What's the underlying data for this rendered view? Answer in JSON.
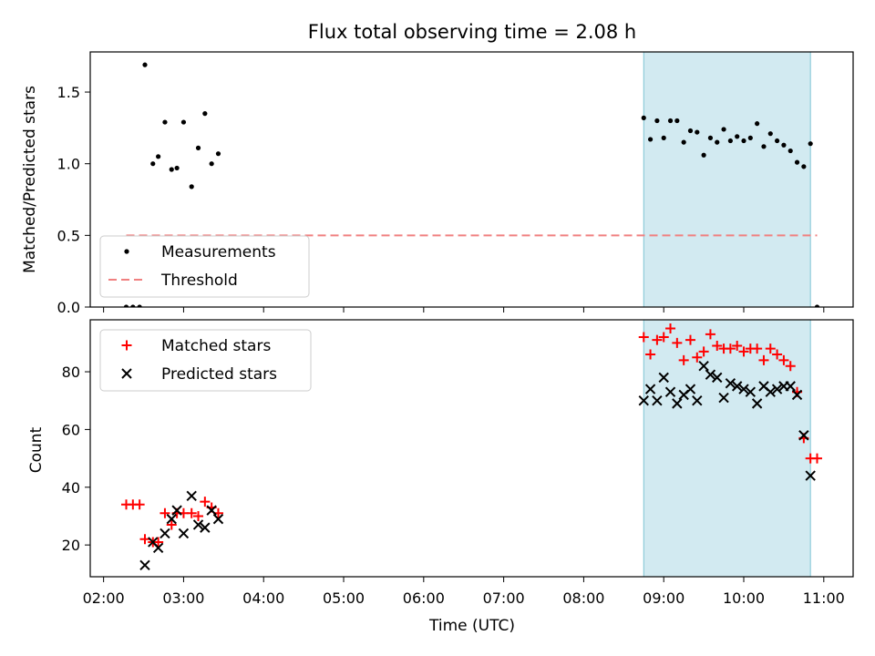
{
  "figure": {
    "title": "Flux total observing time = 2.08 h",
    "xlabel": "Time (UTC)",
    "xticks": [
      "02:00",
      "03:00",
      "04:00",
      "05:00",
      "06:00",
      "07:00",
      "08:00",
      "09:00",
      "10:00",
      "11:00"
    ],
    "shade": {
      "start": "08:45",
      "end": "10:50",
      "color": "#add8e6"
    }
  },
  "chart_data": [
    {
      "type": "scatter",
      "title": "Flux total observing time = 2.08 h",
      "xlabel": "",
      "ylabel": "Matched/Predicted stars",
      "xlim": [
        "01:50",
        "11:22"
      ],
      "ylim": [
        0,
        1.78
      ],
      "yticks": [
        0.0,
        0.5,
        1.0,
        1.5
      ],
      "ytick_labels": [
        "0.0",
        "0.5",
        "1.0",
        "1.5"
      ],
      "legend": {
        "placement": "lower-left",
        "entries": [
          "Measurements",
          "Threshold"
        ]
      },
      "series": [
        {
          "name": "Measurements",
          "marker": "dot",
          "color": "#000000",
          "points": [
            [
              "02:17",
              0.0
            ],
            [
              "02:22",
              0.0
            ],
            [
              "02:27",
              0.0
            ],
            [
              "02:31",
              1.69
            ],
            [
              "02:37",
              1.0
            ],
            [
              "02:41",
              1.05
            ],
            [
              "02:46",
              1.29
            ],
            [
              "02:51",
              0.96
            ],
            [
              "02:55",
              0.97
            ],
            [
              "03:00",
              1.29
            ],
            [
              "03:06",
              0.84
            ],
            [
              "03:11",
              1.11
            ],
            [
              "03:16",
              1.35
            ],
            [
              "03:21",
              1.0
            ],
            [
              "03:26",
              1.07
            ],
            [
              "08:45",
              1.32
            ],
            [
              "08:50",
              1.17
            ],
            [
              "08:55",
              1.3
            ],
            [
              "09:00",
              1.18
            ],
            [
              "09:05",
              1.3
            ],
            [
              "09:10",
              1.3
            ],
            [
              "09:15",
              1.15
            ],
            [
              "09:20",
              1.23
            ],
            [
              "09:25",
              1.22
            ],
            [
              "09:30",
              1.06
            ],
            [
              "09:35",
              1.18
            ],
            [
              "09:40",
              1.15
            ],
            [
              "09:45",
              1.24
            ],
            [
              "09:50",
              1.16
            ],
            [
              "09:55",
              1.19
            ],
            [
              "10:00",
              1.16
            ],
            [
              "10:05",
              1.18
            ],
            [
              "10:10",
              1.28
            ],
            [
              "10:15",
              1.12
            ],
            [
              "10:20",
              1.21
            ],
            [
              "10:25",
              1.16
            ],
            [
              "10:30",
              1.13
            ],
            [
              "10:35",
              1.09
            ],
            [
              "10:40",
              1.01
            ],
            [
              "10:45",
              0.98
            ],
            [
              "10:50",
              1.14
            ],
            [
              "10:55",
              0.0
            ]
          ]
        },
        {
          "name": "Threshold",
          "type": "line",
          "style": "dashed",
          "color": "#f08080",
          "points": [
            [
              "02:17",
              0.5
            ],
            [
              "10:55",
              0.5
            ]
          ]
        }
      ]
    },
    {
      "type": "scatter",
      "xlabel": "Time (UTC)",
      "ylabel": "Count",
      "xlim": [
        "01:50",
        "11:22"
      ],
      "ylim": [
        9,
        98
      ],
      "yticks": [
        20,
        40,
        60,
        80
      ],
      "legend": {
        "placement": "top-left",
        "entries": [
          "Matched stars",
          "Predicted stars"
        ]
      },
      "series": [
        {
          "name": "Matched stars",
          "marker": "plus",
          "color": "#ff0000",
          "points": [
            [
              "02:17",
              34
            ],
            [
              "02:22",
              34
            ],
            [
              "02:27",
              34
            ],
            [
              "02:31",
              22
            ],
            [
              "02:37",
              21
            ],
            [
              "02:41",
              21
            ],
            [
              "02:46",
              31
            ],
            [
              "02:51",
              27
            ],
            [
              "02:55",
              31
            ],
            [
              "03:00",
              31
            ],
            [
              "03:06",
              31
            ],
            [
              "03:11",
              30
            ],
            [
              "03:16",
              35
            ],
            [
              "03:21",
              33
            ],
            [
              "03:26",
              31
            ],
            [
              "08:45",
              92
            ],
            [
              "08:50",
              86
            ],
            [
              "08:55",
              91
            ],
            [
              "09:00",
              92
            ],
            [
              "09:05",
              95
            ],
            [
              "09:10",
              90
            ],
            [
              "09:15",
              84
            ],
            [
              "09:20",
              91
            ],
            [
              "09:25",
              85
            ],
            [
              "09:30",
              87
            ],
            [
              "09:35",
              93
            ],
            [
              "09:40",
              89
            ],
            [
              "09:45",
              88
            ],
            [
              "09:50",
              88
            ],
            [
              "09:55",
              89
            ],
            [
              "10:00",
              87
            ],
            [
              "10:05",
              88
            ],
            [
              "10:10",
              88
            ],
            [
              "10:15",
              84
            ],
            [
              "10:20",
              88
            ],
            [
              "10:25",
              86
            ],
            [
              "10:30",
              84
            ],
            [
              "10:35",
              82
            ],
            [
              "10:40",
              73
            ],
            [
              "10:45",
              57
            ],
            [
              "10:50",
              50
            ],
            [
              "10:55",
              50
            ]
          ]
        },
        {
          "name": "Predicted stars",
          "marker": "x",
          "color": "#000000",
          "points": [
            [
              "02:31",
              13
            ],
            [
              "02:37",
              21
            ],
            [
              "02:41",
              19
            ],
            [
              "02:46",
              24
            ],
            [
              "02:51",
              29
            ],
            [
              "02:55",
              32
            ],
            [
              "03:00",
              24
            ],
            [
              "03:06",
              37
            ],
            [
              "03:11",
              27
            ],
            [
              "03:16",
              26
            ],
            [
              "03:21",
              32
            ],
            [
              "03:26",
              29
            ],
            [
              "08:45",
              70
            ],
            [
              "08:50",
              74
            ],
            [
              "08:55",
              70
            ],
            [
              "09:00",
              78
            ],
            [
              "09:05",
              73
            ],
            [
              "09:10",
              69
            ],
            [
              "09:15",
              72
            ],
            [
              "09:20",
              74
            ],
            [
              "09:25",
              70
            ],
            [
              "09:30",
              82
            ],
            [
              "09:35",
              79
            ],
            [
              "09:40",
              78
            ],
            [
              "09:45",
              71
            ],
            [
              "09:50",
              76
            ],
            [
              "09:55",
              75
            ],
            [
              "10:00",
              74
            ],
            [
              "10:05",
              73
            ],
            [
              "10:10",
              69
            ],
            [
              "10:15",
              75
            ],
            [
              "10:20",
              73
            ],
            [
              "10:25",
              74
            ],
            [
              "10:30",
              75
            ],
            [
              "10:35",
              75
            ],
            [
              "10:40",
              72
            ],
            [
              "10:45",
              58
            ],
            [
              "10:50",
              44
            ]
          ]
        }
      ]
    }
  ]
}
